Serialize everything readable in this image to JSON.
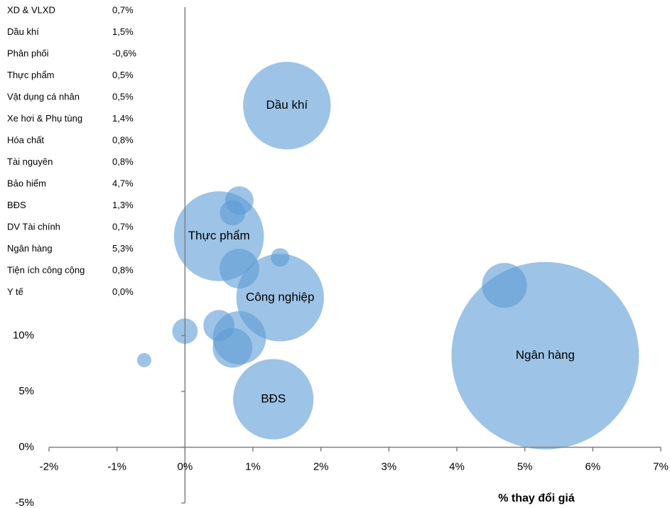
{
  "chart_data": {
    "type": "bubble",
    "x_label": "% thay đổi giá",
    "color": "#5b9bd5",
    "xlim": [
      -2,
      7
    ],
    "ylim": [
      -5,
      40
    ],
    "xticks": [
      {
        "value": -2,
        "label": "-2%"
      },
      {
        "value": -1,
        "label": "-1%"
      },
      {
        "value": 0,
        "label": "0%"
      },
      {
        "value": 1,
        "label": "1%"
      },
      {
        "value": 2,
        "label": "2%"
      },
      {
        "value": 3,
        "label": "3%"
      },
      {
        "value": 4,
        "label": "4%"
      },
      {
        "value": 5,
        "label": "5%"
      },
      {
        "value": 6,
        "label": "6%"
      },
      {
        "value": 7,
        "label": "7%"
      }
    ],
    "yticks": [
      {
        "value": -5,
        "label": "-5%"
      },
      {
        "value": 0,
        "label": "0%"
      },
      {
        "value": 5,
        "label": "5%"
      },
      {
        "value": 10,
        "label": "10%"
      }
    ],
    "points": [
      {
        "name": "XD & VLXD",
        "x": 0.7,
        "x_label": "0,7%",
        "y": 21,
        "size": 3.2,
        "in_table": true,
        "labeled": false
      },
      {
        "name": "Dầu khí",
        "x": 1.5,
        "x_label": "1,5%",
        "y": 30.6,
        "size": 38,
        "in_table": true,
        "labeled": true
      },
      {
        "name": "Phân phối",
        "x": -0.6,
        "x_label": "-0,6%",
        "y": 7.8,
        "size": 1,
        "in_table": true,
        "labeled": false
      },
      {
        "name": "Thực phẩm",
        "x": 0.5,
        "x_label": "0,5%",
        "y": 18.9,
        "size": 40,
        "in_table": true,
        "labeled": true
      },
      {
        "name": "Vật dụng cá nhân",
        "x": 0.5,
        "x_label": "0,5%",
        "y": 10.9,
        "size": 4.8,
        "in_table": true,
        "labeled": false
      },
      {
        "name": "Xe hơi & Phụ tùng",
        "x": 1.4,
        "x_label": "1,4%",
        "y": 17,
        "size": 1.7,
        "in_table": true,
        "labeled": false
      },
      {
        "name": "Hóa chất",
        "x": 0.8,
        "x_label": "0,8%",
        "y": 22.1,
        "size": 4,
        "in_table": true,
        "labeled": false
      },
      {
        "name": "Tài nguyên",
        "x": 0.8,
        "x_label": "0,8%",
        "y": 16,
        "size": 7.8,
        "in_table": true,
        "labeled": false
      },
      {
        "name": "Bảo hiểm",
        "x": 4.7,
        "x_label": "4,7%",
        "y": 14.5,
        "size": 10,
        "in_table": true,
        "labeled": false
      },
      {
        "name": "BĐS",
        "x": 1.3,
        "x_label": "1,3%",
        "y": 4.3,
        "size": 32,
        "in_table": true,
        "labeled": true
      },
      {
        "name": "DV Tài chính",
        "x": 0.7,
        "x_label": "0,7%",
        "y": 8.9,
        "size": 7.8,
        "in_table": true,
        "labeled": false
      },
      {
        "name": "Ngân hàng",
        "x": 5.3,
        "x_label": "5,3%",
        "y": 8.2,
        "size": 174,
        "in_table": true,
        "labeled": true
      },
      {
        "name": "Tiện ích công cộng",
        "x": 0.8,
        "x_label": "0,8%",
        "y": 9.8,
        "size": 14,
        "in_table": true,
        "labeled": false
      },
      {
        "name": "Y tế",
        "x": 0.0,
        "x_label": "0,0%",
        "y": 10.4,
        "size": 3.2,
        "in_table": true,
        "labeled": false
      },
      {
        "name": "Công nghiệp",
        "x": 1.4,
        "y": 13.4,
        "size": 38,
        "in_table": false,
        "labeled": true
      }
    ]
  }
}
